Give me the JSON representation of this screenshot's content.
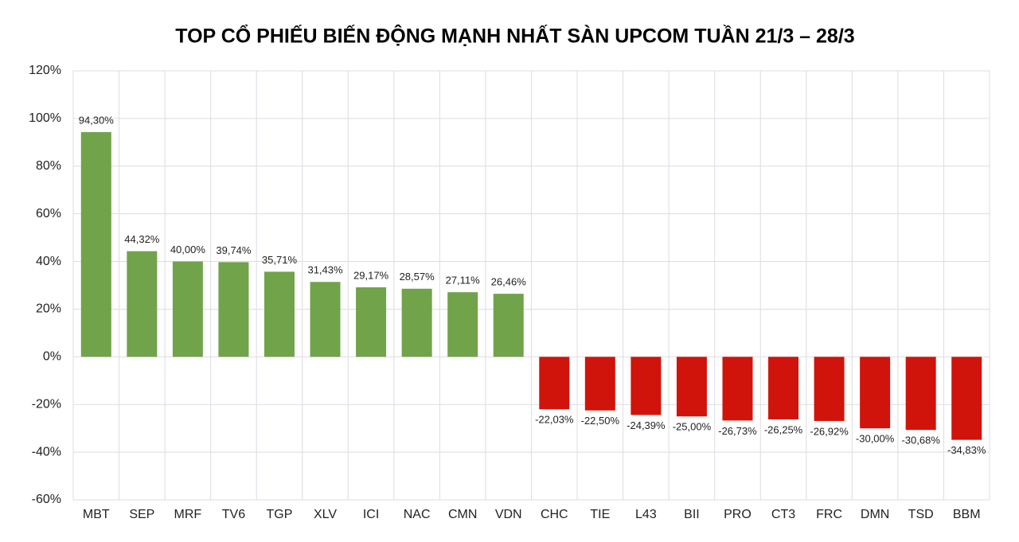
{
  "chart_data": {
    "type": "bar",
    "title": "TOP CỔ PHIẾU BIẾN ĐỘNG MẠNH NHẤT SÀN UPCOM TUẦN 21/3 – 28/3",
    "categories": [
      "MBT",
      "SEP",
      "MRF",
      "TV6",
      "TGP",
      "XLV",
      "ICI",
      "NAC",
      "CMN",
      "VDN",
      "CHC",
      "TIE",
      "L43",
      "BII",
      "PRO",
      "CT3",
      "FRC",
      "DMN",
      "TSD",
      "BBM"
    ],
    "values": [
      94.3,
      44.32,
      40.0,
      39.74,
      35.71,
      31.43,
      29.17,
      28.57,
      27.11,
      26.46,
      -22.03,
      -22.5,
      -24.39,
      -25.0,
      -26.73,
      -26.25,
      -26.92,
      -30.0,
      -30.68,
      -34.83
    ],
    "value_labels": [
      "94,30%",
      "44,32%",
      "40,00%",
      "39,74%",
      "35,71%",
      "31,43%",
      "29,17%",
      "28,57%",
      "27,11%",
      "26,46%",
      "-22,03%",
      "-22,50%",
      "-24,39%",
      "-25,00%",
      "-26,73%",
      "-26,25%",
      "-26,92%",
      "-30,00%",
      "-30,68%",
      "-34,83%"
    ],
    "positive_color": "#70a34a",
    "negative_color": "#d0140b",
    "ylim": [
      -60,
      120
    ],
    "yticks": [
      {
        "value": -60,
        "label": "-60%"
      },
      {
        "value": -40,
        "label": "-40%"
      },
      {
        "value": -20,
        "label": "-20%"
      },
      {
        "value": 0,
        "label": "0%"
      },
      {
        "value": 20,
        "label": "20%"
      },
      {
        "value": 40,
        "label": "40%"
      },
      {
        "value": 60,
        "label": "60%"
      },
      {
        "value": 80,
        "label": "80%"
      },
      {
        "value": 100,
        "label": "100%"
      },
      {
        "value": 120,
        "label": "120%"
      }
    ],
    "grid": true
  }
}
